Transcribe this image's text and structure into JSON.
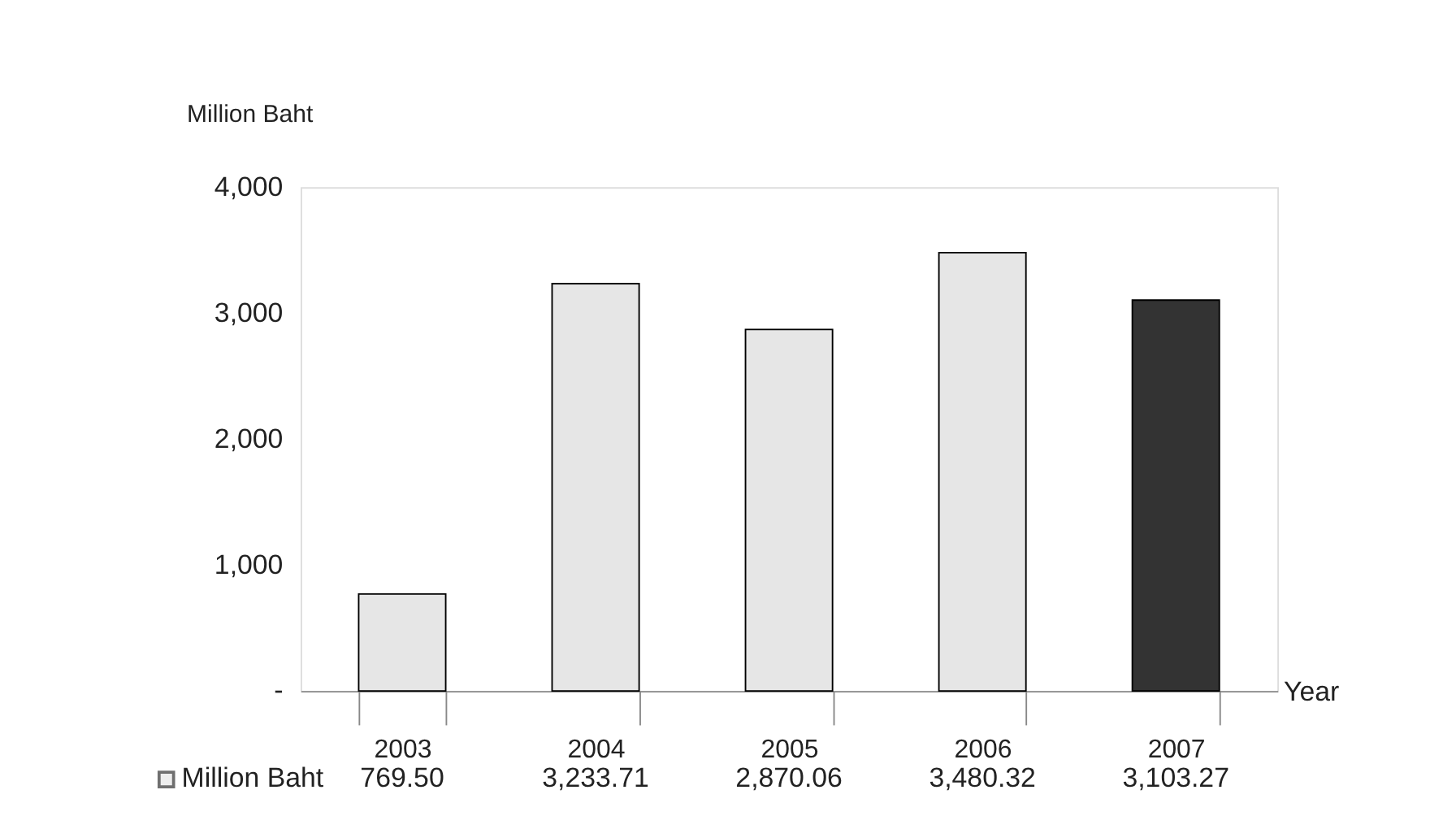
{
  "chart_data": {
    "type": "bar",
    "ylabel": "Million Baht",
    "xlabel": "Year",
    "categories": [
      "2003",
      "2004",
      "2005",
      "2006",
      "2007"
    ],
    "series": [
      {
        "name": "Million Baht",
        "colors": [
          "#e6e6e6",
          "#e6e6e6",
          "#e6e6e6",
          "#e6e6e6",
          "#333333"
        ],
        "values": [
          769.5,
          3233.71,
          2870.06,
          3480.32,
          3103.27
        ],
        "value_labels": [
          "769.50",
          "3,233.71",
          "2,870.06",
          "3,480.32",
          "3,103.27"
        ]
      }
    ],
    "ylim": [
      0,
      4000
    ],
    "yticks": [
      {
        "value": 0,
        "label": "-"
      },
      {
        "value": 1000,
        "label": "1,000"
      },
      {
        "value": 2000,
        "label": "2,000"
      },
      {
        "value": 3000,
        "label": "3,000"
      },
      {
        "value": 4000,
        "label": "4,000"
      }
    ],
    "grid": false,
    "legend": "bottom left"
  }
}
